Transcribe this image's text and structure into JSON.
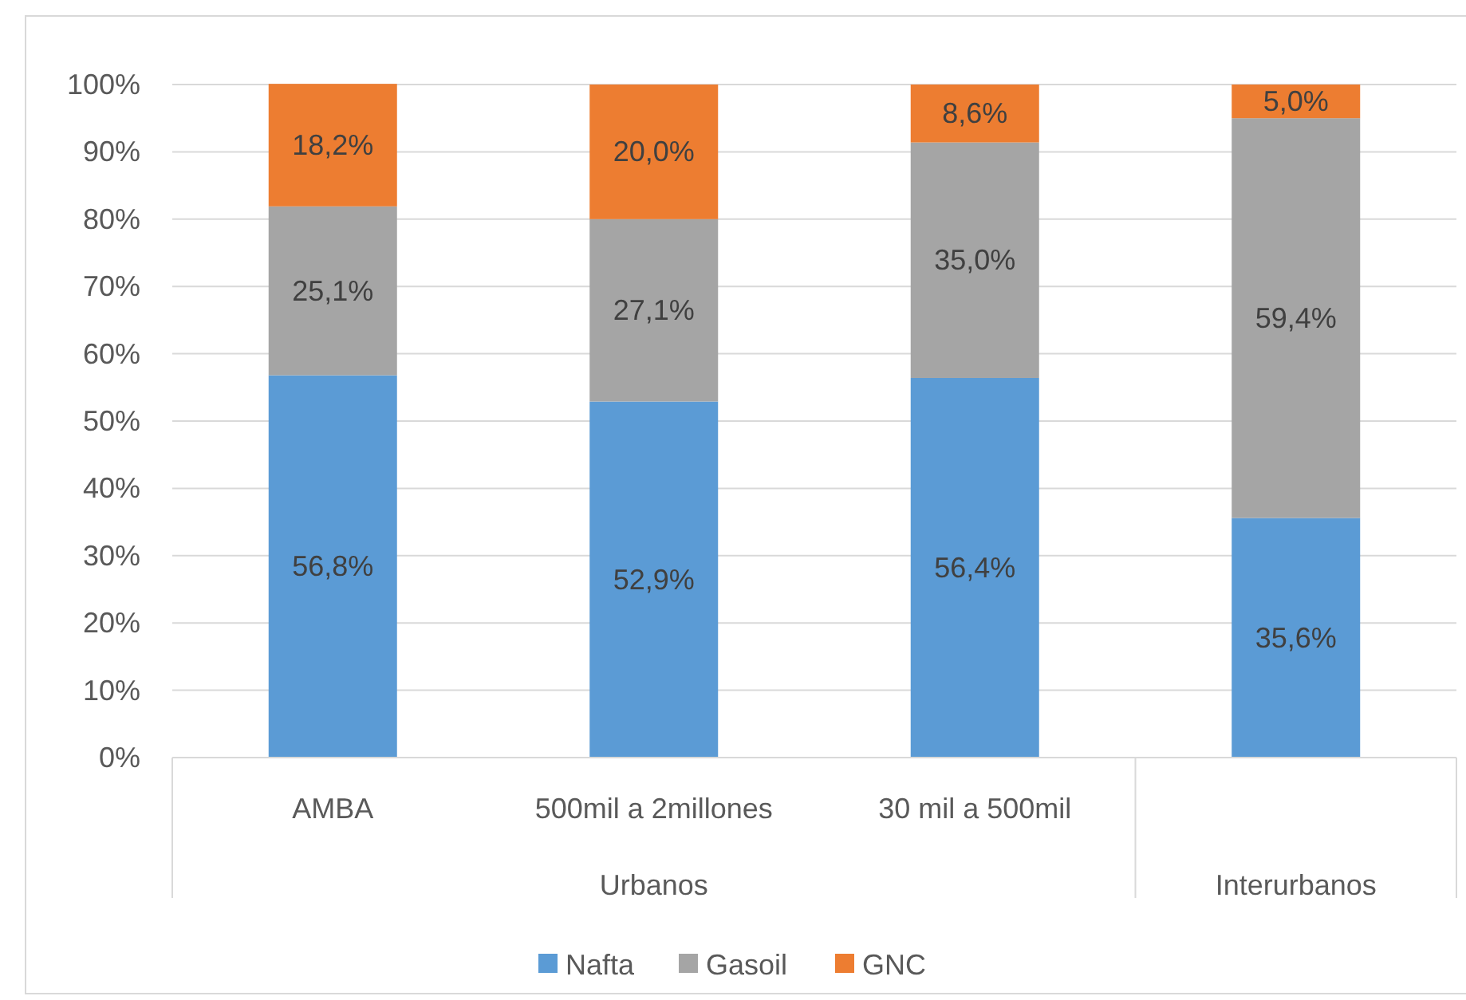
{
  "chart_data": {
    "type": "bar",
    "stacked": true,
    "categories": [
      "AMBA",
      "500mil a 2millones",
      "30 mil a 500mil",
      null
    ],
    "series": [
      {
        "name": "Nafta",
        "color": "#5b9bd5",
        "values": [
          56.8,
          52.9,
          56.4,
          35.6
        ]
      },
      {
        "name": "Gasoil",
        "color": "#a5a5a5",
        "values": [
          25.1,
          27.1,
          35.0,
          59.4
        ]
      },
      {
        "name": "GNC",
        "color": "#ed7d31",
        "values": [
          18.2,
          20.0,
          8.6,
          5.0
        ]
      }
    ],
    "value_labels": [
      [
        "56,8%",
        "52,9%",
        "56,4%",
        "35,6%"
      ],
      [
        "25,1%",
        "27,1%",
        "35,0%",
        "59,4%"
      ],
      [
        "18,2%",
        "20,0%",
        "8,6%",
        "5,0%"
      ]
    ],
    "ylim": [
      0,
      100
    ],
    "yticks": [
      {
        "value": 0,
        "label": "0%"
      },
      {
        "value": 10,
        "label": "10%"
      },
      {
        "value": 20,
        "label": "20%"
      },
      {
        "value": 30,
        "label": "30%"
      },
      {
        "value": 40,
        "label": "40%"
      },
      {
        "value": 50,
        "label": "50%"
      },
      {
        "value": 60,
        "label": "60%"
      },
      {
        "value": 70,
        "label": "70%"
      },
      {
        "value": 80,
        "label": "80%"
      },
      {
        "value": 90,
        "label": "90%"
      },
      {
        "value": 100,
        "label": "100%"
      }
    ],
    "grid": "y",
    "legend": "bottom",
    "annotations": [
      "Urbanos",
      "Interurbanos"
    ]
  }
}
